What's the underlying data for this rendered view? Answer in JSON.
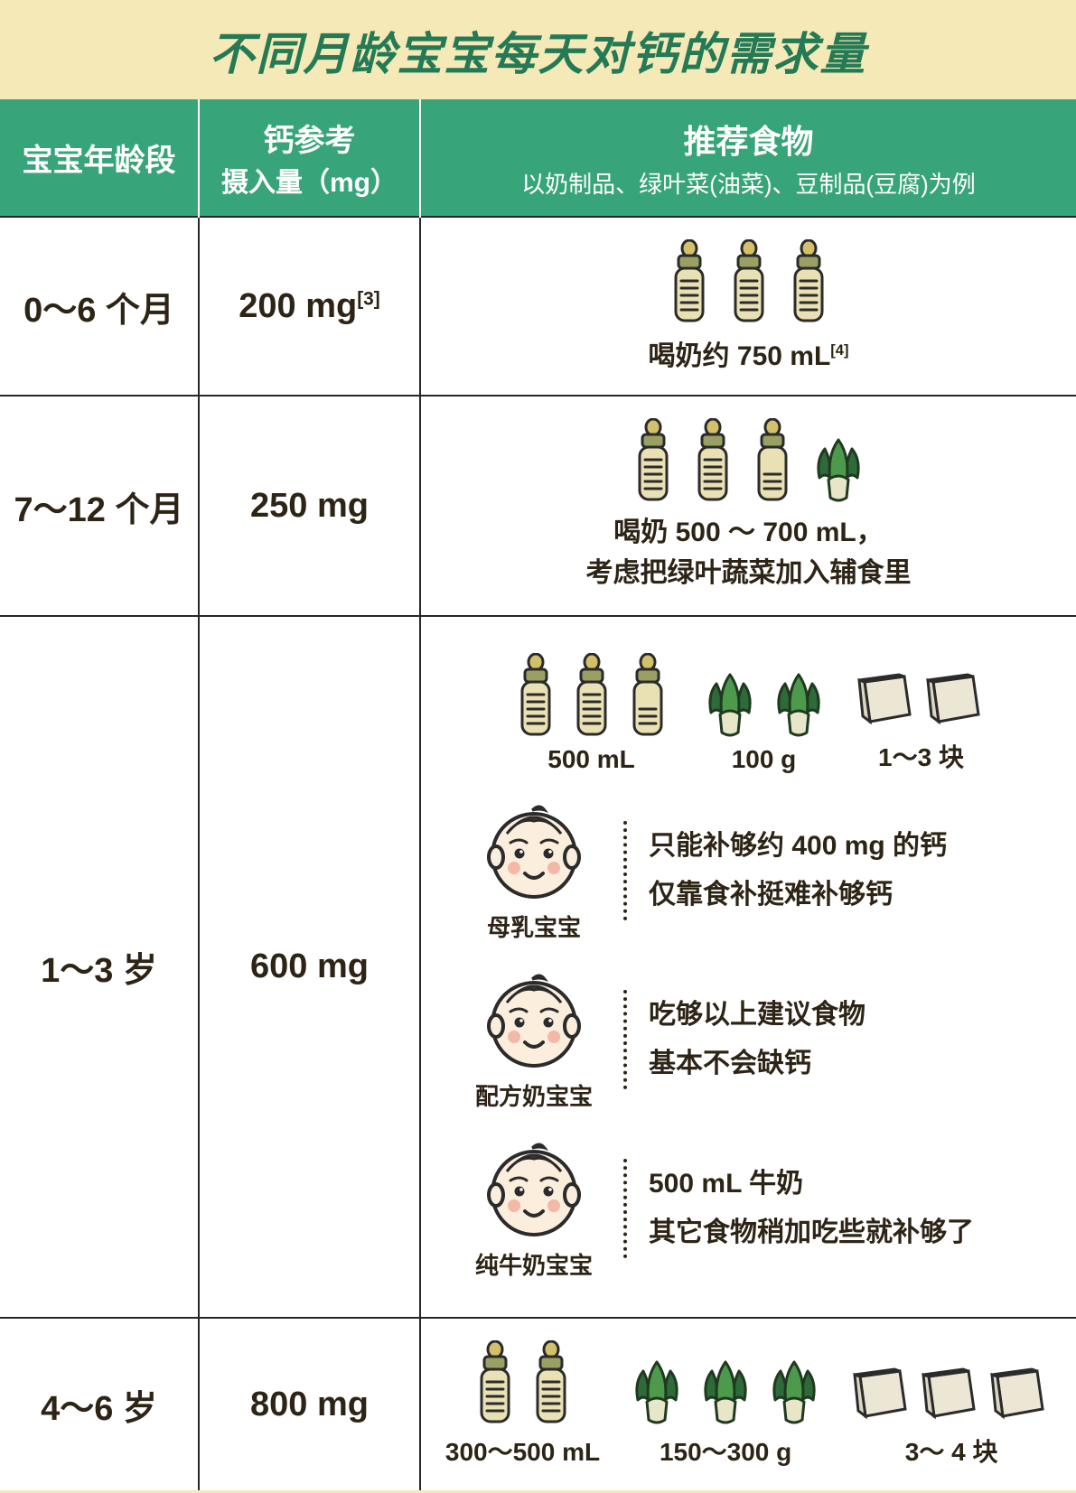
{
  "colors": {
    "title_bg": "#f5e9b8",
    "title_text": "#247a55",
    "header_bg": "#38a47a",
    "header_text": "#ffffff",
    "border": "#272727",
    "body_text": "#2d2416",
    "bottle_body": "#e9e1b3",
    "bottle_cap": "#9aa064",
    "bottle_nipple": "#d4c06a",
    "leaf_dark": "#2e6a3a",
    "leaf_light": "#4d9a4d",
    "tofu_fill": "#ece7d5",
    "baby_skin": "#fbeedd",
    "baby_hair": "#5a4a3a"
  },
  "title": "不同月龄宝宝每天对钙的需求量",
  "header": {
    "age": "宝宝年龄段",
    "intake_l1": "钙参考",
    "intake_l2": "摄入量（mg）",
    "food_l1": "推荐食物",
    "food_l2": "以奶制品、绿叶菜(油菜)、豆制品(豆腐)为例"
  },
  "rows": [
    {
      "age": "0～6 个月",
      "intake": "200 mg",
      "intake_sup": "[3]",
      "bottles_full": 3,
      "food_line1": "喝奶约 750 mL",
      "food_line1_sup": "[4]"
    },
    {
      "age": "7～12 个月",
      "intake": "250 mg",
      "bottles_full": 2,
      "bottles_half": 1,
      "veg": 1,
      "food_line1": "喝奶 500 ～ 700 mL，",
      "food_line2": "考虑把绿叶蔬菜加入辅食里"
    },
    {
      "age": "1～3 岁",
      "intake": "600 mg",
      "groups": {
        "milk": {
          "bottles_full": 2,
          "bottles_half": 1,
          "label": "500 mL"
        },
        "veg": {
          "count": 2,
          "label": "100 g"
        },
        "tofu": {
          "count": 2,
          "label": "1～3 块"
        }
      },
      "babies": [
        {
          "name": "母乳宝宝",
          "line1": "只能补够约 400 mg 的钙",
          "line2": "仅靠食补挺难补够钙"
        },
        {
          "name": "配方奶宝宝",
          "line1": "吃够以上建议食物",
          "line2": "基本不会缺钙"
        },
        {
          "name": "纯牛奶宝宝",
          "line1": "500 mL 牛奶",
          "line2": "其它食物稍加吃些就补够了"
        }
      ]
    },
    {
      "age": "4～6 岁",
      "intake": "800 mg",
      "groups": {
        "milk": {
          "bottles_full": 2,
          "label": "300～500 mL"
        },
        "veg": {
          "count": 3,
          "label": "150～300 g"
        },
        "tofu": {
          "count": 3,
          "label": "3～ 4 块"
        }
      }
    }
  ]
}
